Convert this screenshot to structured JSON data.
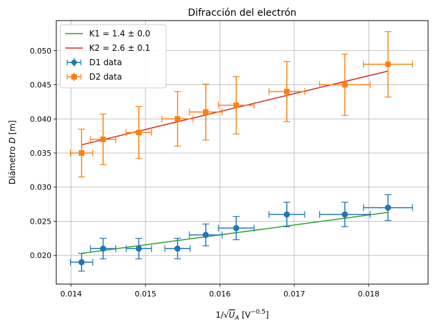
{
  "chart_data": {
    "type": "scatter",
    "title": "Difracción del electrón",
    "xlabel_html": "1/√U_A [V^-0.5]",
    "xlabel_parts": {
      "pre": "1/",
      "sqrt_var": "U",
      "sqrt_sub": "A",
      "unit_pre": " [V",
      "unit_sup": "−0.5",
      "unit_post": "]"
    },
    "ylabel_parts": {
      "pre": "Diámetro ",
      "var": "D",
      "post": " [m]"
    },
    "xlim": [
      0.0138,
      0.0188
    ],
    "ylim": [
      0.0158,
      0.0544
    ],
    "xticks": [
      0.014,
      0.015,
      0.016,
      0.017,
      0.018
    ],
    "xtick_labels": [
      "0.014",
      "0.015",
      "0.016",
      "0.017",
      "0.018"
    ],
    "yticks": [
      0.02,
      0.025,
      0.03,
      0.035,
      0.04,
      0.045,
      0.05
    ],
    "ytick_labels": [
      "0.020",
      "0.025",
      "0.030",
      "0.035",
      "0.040",
      "0.045",
      "0.050"
    ],
    "grid": true,
    "legend_position": "top-left",
    "series": [
      {
        "name": "D1 data",
        "kind": "errorbar",
        "marker": "circle",
        "color": "#1f77b4",
        "x": [
          0.01414,
          0.01443,
          0.01491,
          0.01543,
          0.01581,
          0.01622,
          0.0169,
          0.01768,
          0.01826
        ],
        "y": [
          0.019,
          0.021,
          0.021,
          0.021,
          0.023,
          0.024,
          0.026,
          0.026,
          0.027
        ],
        "xerr": [
          0.00015,
          0.00017,
          0.00017,
          0.00017,
          0.00022,
          0.00024,
          0.00024,
          0.00034,
          0.00033
        ],
        "yerr": [
          0.0013,
          0.0015,
          0.0015,
          0.0015,
          0.0016,
          0.0017,
          0.0018,
          0.0018,
          0.0019
        ]
      },
      {
        "name": "D2 data",
        "kind": "errorbar",
        "marker": "square",
        "color": "#ff7f0e",
        "x": [
          0.01414,
          0.01443,
          0.01491,
          0.01543,
          0.01581,
          0.01622,
          0.0169,
          0.01768,
          0.01826
        ],
        "y": [
          0.035,
          0.037,
          0.038,
          0.04,
          0.041,
          0.042,
          0.044,
          0.045,
          0.048
        ],
        "xerr": [
          0.00015,
          0.00017,
          0.00017,
          0.00021,
          0.00022,
          0.00024,
          0.00024,
          0.00034,
          0.00033
        ],
        "yerr": [
          0.0035,
          0.0037,
          0.0038,
          0.004,
          0.0041,
          0.0042,
          0.0044,
          0.0045,
          0.0048
        ]
      },
      {
        "name": "K1 = 1.4 ± 0.0",
        "kind": "line",
        "color": "#2ca02c",
        "x": [
          0.01414,
          0.01826
        ],
        "y": [
          0.0203,
          0.0263
        ]
      },
      {
        "name": "K2 = 2.6 ± 0.1",
        "kind": "line",
        "color": "#d62728",
        "x": [
          0.01414,
          0.01826
        ],
        "y": [
          0.0362,
          0.047
        ]
      }
    ]
  }
}
